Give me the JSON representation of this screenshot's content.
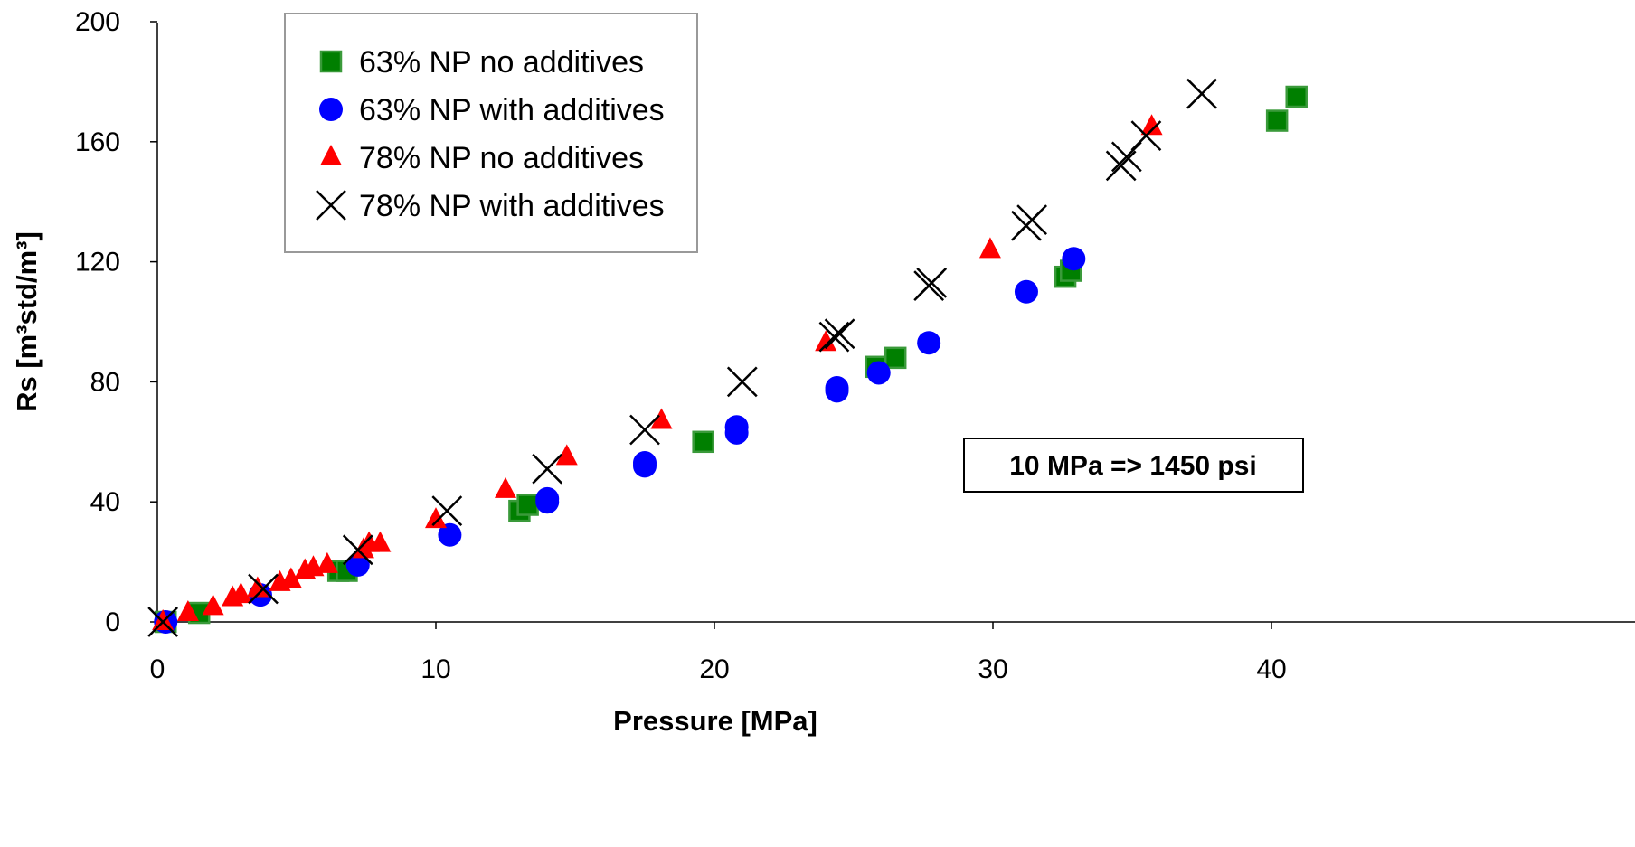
{
  "chart_data": {
    "type": "scatter",
    "xlabel": "Pressure [MPa]",
    "ylabel": "Rs [m³std/m³]",
    "xlim": [
      0,
      45
    ],
    "ylim": [
      0,
      200
    ],
    "x_ticks": [
      0,
      10,
      20,
      30,
      40
    ],
    "y_ticks": [
      0,
      40,
      80,
      120,
      160,
      200
    ],
    "grid": false,
    "legend_position": "top-left",
    "annotation": "10 MPa => 1450 psi",
    "series": [
      {
        "name": "63% NP no additives",
        "marker": "square",
        "color": "#007F00",
        "points": [
          [
            0.3,
            0
          ],
          [
            1.5,
            3
          ],
          [
            6.5,
            17
          ],
          [
            6.8,
            17
          ],
          [
            13.0,
            37
          ],
          [
            13.3,
            39
          ],
          [
            19.6,
            60
          ],
          [
            25.8,
            85
          ],
          [
            26.5,
            88
          ],
          [
            32.6,
            115
          ],
          [
            32.8,
            117
          ],
          [
            40.2,
            167
          ],
          [
            40.9,
            175
          ]
        ]
      },
      {
        "name": "63% NP with additives",
        "marker": "circle",
        "color": "#0000FF",
        "points": [
          [
            0.3,
            0
          ],
          [
            3.7,
            9
          ],
          [
            7.2,
            19
          ],
          [
            10.5,
            29
          ],
          [
            14.0,
            40
          ],
          [
            14.0,
            41
          ],
          [
            17.5,
            52
          ],
          [
            17.5,
            53
          ],
          [
            20.8,
            63
          ],
          [
            20.8,
            65
          ],
          [
            24.4,
            77
          ],
          [
            24.4,
            78
          ],
          [
            25.9,
            83
          ],
          [
            27.7,
            93
          ],
          [
            31.2,
            110
          ],
          [
            32.9,
            121
          ]
        ]
      },
      {
        "name": "78% NP no additives",
        "marker": "triangle",
        "color": "#FF0000",
        "points": [
          [
            0.2,
            0
          ],
          [
            1.1,
            3
          ],
          [
            2.0,
            5
          ],
          [
            2.7,
            8
          ],
          [
            3.0,
            9
          ],
          [
            3.6,
            11
          ],
          [
            4.4,
            13
          ],
          [
            4.8,
            14
          ],
          [
            5.3,
            17
          ],
          [
            5.6,
            18
          ],
          [
            6.1,
            19
          ],
          [
            7.4,
            24
          ],
          [
            7.6,
            26
          ],
          [
            8.0,
            26
          ],
          [
            10.0,
            34
          ],
          [
            12.5,
            44
          ],
          [
            14.7,
            55
          ],
          [
            18.1,
            67
          ],
          [
            24.0,
            93
          ],
          [
            29.9,
            124
          ],
          [
            35.7,
            165
          ]
        ]
      },
      {
        "name": "78% NP with additives",
        "marker": "x",
        "color": "#000000",
        "points": [
          [
            0.2,
            0
          ],
          [
            3.8,
            11
          ],
          [
            7.2,
            24
          ],
          [
            10.4,
            37
          ],
          [
            14.0,
            51
          ],
          [
            17.5,
            64
          ],
          [
            21.0,
            80
          ],
          [
            24.3,
            95
          ],
          [
            24.5,
            96
          ],
          [
            27.7,
            112
          ],
          [
            27.8,
            113
          ],
          [
            31.2,
            132
          ],
          [
            31.4,
            134
          ],
          [
            34.6,
            152
          ],
          [
            34.8,
            155
          ],
          [
            35.5,
            162
          ],
          [
            37.5,
            176
          ]
        ]
      }
    ]
  }
}
